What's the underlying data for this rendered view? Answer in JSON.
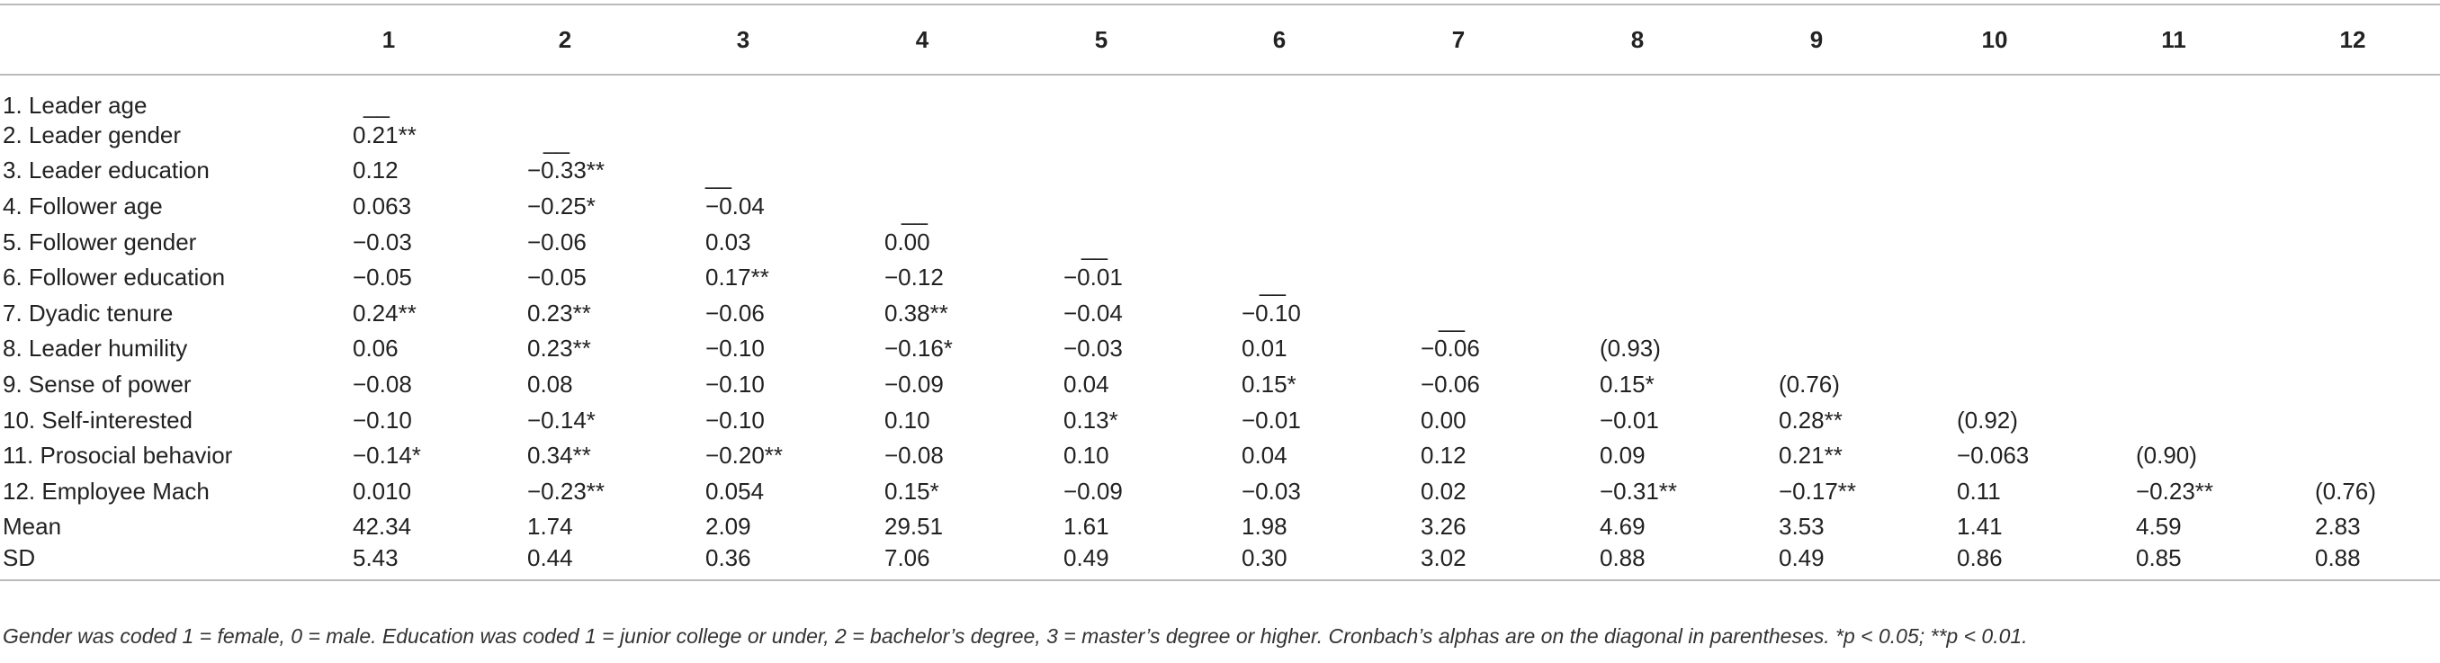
{
  "table": {
    "corner": "",
    "columns": [
      "1",
      "2",
      "3",
      "4",
      "5",
      "6",
      "7",
      "8",
      "9",
      "10",
      "11",
      "12"
    ],
    "rows": [
      {
        "label": "1. Leader age",
        "cells": [
          "__",
          "",
          "",
          "",
          "",
          "",
          "",
          "",
          "",
          "",
          "",
          ""
        ]
      },
      {
        "label": "2. Leader gender",
        "cells": [
          "0.21**",
          "__",
          "",
          "",
          "",
          "",
          "",
          "",
          "",
          "",
          "",
          ""
        ]
      },
      {
        "label": "3. Leader education",
        "cells": [
          "0.12",
          "−0.33**",
          "__",
          "",
          "",
          "",
          "",
          "",
          "",
          "",
          "",
          ""
        ]
      },
      {
        "label": "4. Follower age",
        "cells": [
          "0.063",
          "−0.25*",
          "−0.04",
          "__",
          "",
          "",
          "",
          "",
          "",
          "",
          "",
          ""
        ]
      },
      {
        "label": "5. Follower gender",
        "cells": [
          "−0.03",
          "−0.06",
          "0.03",
          "0.00",
          "__",
          "",
          "",
          "",
          "",
          "",
          "",
          ""
        ]
      },
      {
        "label": "6. Follower education",
        "cells": [
          "−0.05",
          "−0.05",
          "0.17**",
          "−0.12",
          "−0.01",
          "__",
          "",
          "",
          "",
          "",
          "",
          ""
        ]
      },
      {
        "label": "7. Dyadic tenure",
        "cells": [
          "0.24**",
          "0.23**",
          "−0.06",
          "0.38**",
          "−0.04",
          "−0.10",
          "__",
          "",
          "",
          "",
          "",
          ""
        ]
      },
      {
        "label": "8. Leader humility",
        "cells": [
          "0.06",
          "0.23**",
          "−0.10",
          "−0.16*",
          "−0.03",
          "0.01",
          "−0.06",
          "(0.93)",
          "",
          "",
          "",
          ""
        ]
      },
      {
        "label": "9. Sense of power",
        "cells": [
          "−0.08",
          "0.08",
          "−0.10",
          "−0.09",
          "0.04",
          "0.15*",
          "−0.06",
          "0.15*",
          "(0.76)",
          "",
          "",
          ""
        ]
      },
      {
        "label": "10. Self-interested",
        "cells": [
          "−0.10",
          "−0.14*",
          "−0.10",
          "0.10",
          "0.13*",
          "−0.01",
          "0.00",
          "−0.01",
          "0.28**",
          "(0.92)",
          "",
          ""
        ]
      },
      {
        "label": "11. Prosocial behavior",
        "cells": [
          "−0.14*",
          "0.34**",
          "−0.20**",
          "−0.08",
          "0.10",
          "0.04",
          "0.12",
          "0.09",
          "0.21**",
          "−0.063",
          "(0.90)",
          ""
        ]
      },
      {
        "label": "12. Employee Mach",
        "cells": [
          "0.010",
          "−0.23**",
          "0.054",
          "0.15*",
          "−0.09",
          "−0.03",
          "0.02",
          "−0.31**",
          "−0.17**",
          "0.11",
          "−0.23**",
          "(0.76)"
        ]
      },
      {
        "label": "Mean",
        "cells": [
          "42.34",
          "1.74",
          "2.09",
          "29.51",
          "1.61",
          "1.98",
          "3.26",
          "4.69",
          "3.53",
          "1.41",
          "4.59",
          "2.83"
        ]
      },
      {
        "label": "SD",
        "cells": [
          "5.43",
          "0.44",
          "0.36",
          "7.06",
          "0.49",
          "0.30",
          "3.02",
          "0.88",
          "0.49",
          "0.86",
          "0.85",
          "0.88"
        ]
      }
    ]
  },
  "note": "Gender was coded 1 = female, 0 = male. Education was coded 1 = junior college or under, 2 = bachelor’s degree, 3 = master’s degree or higher. Cronbach’s alphas are on the diagonal in parentheses. *p < 0.05; **p < 0.01."
}
